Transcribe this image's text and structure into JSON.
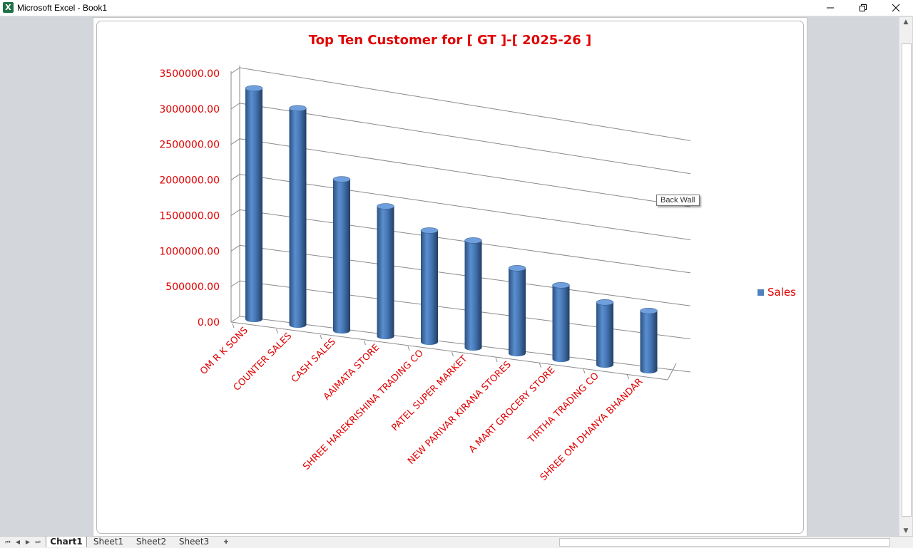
{
  "window": {
    "title": "Microsoft Excel - Book1",
    "app_icon_glyph": "X",
    "controls": [
      "minimize-icon",
      "restore-icon",
      "close-icon"
    ]
  },
  "chart_data": {
    "type": "bar",
    "style": "3d-cylinder",
    "title": "Top Ten Customer for [ GT ]-[ 2025-26 ]",
    "categories": [
      "OM R K SONS",
      "COUNTER SALES",
      "CASH SALES",
      "AAIMATA STORE",
      "SHREE HAREKRISHINA TRADING CO",
      "PATEL SUPER MARKET",
      "NEW PARIVAR KIRANA STORES",
      "A MART GROCERY STORE",
      "TIRTHA TRADING CO",
      "SHREE OM DHANYA BHANDAR"
    ],
    "series": [
      {
        "name": "Sales",
        "values": [
          3250000,
          3050000,
          2130000,
          1830000,
          1570000,
          1510000,
          1200000,
          1040000,
          880000,
          840000
        ],
        "color": "#4f81bd"
      }
    ],
    "ylim": [
      0,
      3500000
    ],
    "yticks": [
      "0.00",
      "500000.00",
      "1000000.00",
      "1500000.00",
      "2000000.00",
      "2500000.00",
      "3000000.00",
      "3500000.00"
    ],
    "legend": "right",
    "grid": true,
    "text_color": "#e00000"
  },
  "tooltip": {
    "text": "Back Wall"
  },
  "sheet_tabs": [
    {
      "label": "Chart1",
      "active": true
    },
    {
      "label": "Sheet1",
      "active": false
    },
    {
      "label": "Sheet2",
      "active": false
    },
    {
      "label": "Sheet3",
      "active": false
    }
  ]
}
